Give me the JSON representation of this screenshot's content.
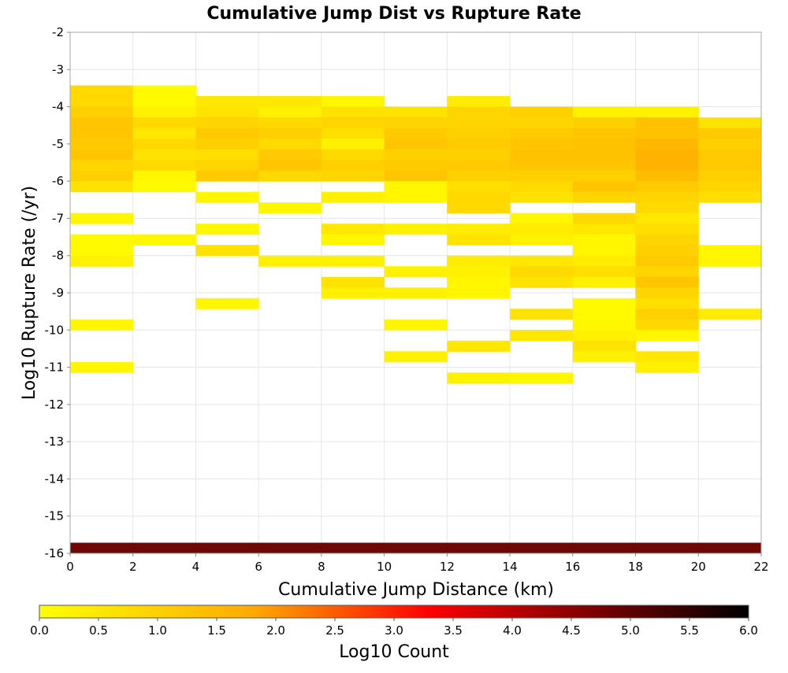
{
  "chart_data": {
    "type": "heatmap",
    "title": "Cumulative Jump Dist vs Rupture Rate",
    "xlabel": "Cumulative Jump Distance (km)",
    "ylabel": "Log10 Rupture Rate (/yr)",
    "xlim": [
      0,
      22
    ],
    "ylim": [
      -16,
      -2
    ],
    "x_ticks": [
      "0",
      "2",
      "4",
      "6",
      "8",
      "10",
      "12",
      "14",
      "16",
      "18",
      "20",
      "22"
    ],
    "y_ticks": [
      "-2",
      "-3",
      "-4",
      "-5",
      "-6",
      "-7",
      "-8",
      "-9",
      "-10",
      "-11",
      "-12",
      "-13",
      "-14",
      "-15",
      "-16"
    ],
    "x_bin_width": 2,
    "y_bin_height": 0.2857,
    "grid": true,
    "colorbar": {
      "label": "Log10 Count",
      "range": [
        0,
        6
      ],
      "ticks": [
        "0.0",
        "0.5",
        "1.0",
        "1.5",
        "2.0",
        "2.5",
        "3.0",
        "3.5",
        "4.0",
        "4.5",
        "5.0",
        "5.5",
        "6.0"
      ],
      "colors": [
        "#ffff00",
        "#ffaa00",
        "#ff0000",
        "#000000"
      ]
    },
    "cells": [
      {
        "x": 0,
        "rows": [
          [
            -3.571,
            0.8
          ],
          [
            -3.857,
            0.8
          ],
          [
            -4.143,
            1.0
          ],
          [
            -4.429,
            1.2
          ],
          [
            -4.714,
            1.2
          ],
          [
            -5.0,
            1.1
          ],
          [
            -5.286,
            1.2
          ],
          [
            -5.571,
            0.9
          ],
          [
            -5.857,
            1.0
          ],
          [
            -6.143,
            0.6
          ],
          [
            -7.0,
            0.2
          ],
          [
            -7.571,
            0.1
          ],
          [
            -7.857,
            0.1
          ],
          [
            -8.143,
            0.3
          ],
          [
            -9.857,
            0.2
          ],
          [
            -11.0,
            0.2
          ]
        ]
      },
      {
        "x": 2,
        "rows": [
          [
            -3.571,
            0.1
          ],
          [
            -3.857,
            0.1
          ],
          [
            -4.143,
            0.3
          ],
          [
            -4.429,
            0.8
          ],
          [
            -4.714,
            0.5
          ],
          [
            -5.0,
            0.8
          ],
          [
            -5.286,
            0.6
          ],
          [
            -5.571,
            0.8
          ],
          [
            -5.857,
            0.2
          ],
          [
            -6.143,
            0.1
          ],
          [
            -7.571,
            0.2
          ]
        ]
      },
      {
        "x": 4,
        "rows": [
          [
            -3.857,
            0.5
          ],
          [
            -4.143,
            0.6
          ],
          [
            -4.429,
            0.9
          ],
          [
            -4.714,
            1.1
          ],
          [
            -5.0,
            1.0
          ],
          [
            -5.286,
            0.7
          ],
          [
            -5.571,
            0.9
          ],
          [
            -5.857,
            1.1
          ],
          [
            -6.429,
            0.2
          ],
          [
            -7.286,
            0.2
          ],
          [
            -7.857,
            0.6
          ],
          [
            -9.286,
            0.2
          ]
        ]
      },
      {
        "x": 6,
        "rows": [
          [
            -3.857,
            0.5
          ],
          [
            -4.143,
            0.3
          ],
          [
            -4.429,
            0.8
          ],
          [
            -4.714,
            1.0
          ],
          [
            -5.0,
            0.8
          ],
          [
            -5.286,
            1.1
          ],
          [
            -5.571,
            1.2
          ],
          [
            -5.857,
            0.8
          ],
          [
            -6.714,
            0.2
          ],
          [
            -8.143,
            0.3
          ]
        ]
      },
      {
        "x": 8,
        "rows": [
          [
            -3.857,
            0.2
          ],
          [
            -4.143,
            0.6
          ],
          [
            -4.429,
            0.9
          ],
          [
            -4.714,
            0.7
          ],
          [
            -5.0,
            0.3
          ],
          [
            -5.286,
            0.8
          ],
          [
            -5.571,
            1.0
          ],
          [
            -5.857,
            0.9
          ],
          [
            -6.429,
            0.3
          ],
          [
            -7.286,
            0.5
          ],
          [
            -7.571,
            0.2
          ],
          [
            -8.143,
            0.3
          ],
          [
            -8.714,
            0.6
          ],
          [
            -9.0,
            0.3
          ]
        ]
      },
      {
        "x": 10,
        "rows": [
          [
            -4.143,
            0.6
          ],
          [
            -4.429,
            0.9
          ],
          [
            -4.714,
            1.1
          ],
          [
            -5.0,
            1.2
          ],
          [
            -5.286,
            1.0
          ],
          [
            -5.571,
            1.1
          ],
          [
            -5.857,
            1.2
          ],
          [
            -6.143,
            0.2
          ],
          [
            -6.429,
            0.2
          ],
          [
            -7.286,
            0.3
          ],
          [
            -8.429,
            0.3
          ],
          [
            -9.0,
            0.3
          ],
          [
            -9.857,
            0.2
          ],
          [
            -10.714,
            0.3
          ]
        ]
      },
      {
        "x": 12,
        "rows": [
          [
            -3.857,
            0.4
          ],
          [
            -4.143,
            0.9
          ],
          [
            -4.429,
            0.9
          ],
          [
            -4.714,
            1.0
          ],
          [
            -5.0,
            1.1
          ],
          [
            -5.286,
            1.0
          ],
          [
            -5.571,
            1.1
          ],
          [
            -5.857,
            1.0
          ],
          [
            -6.143,
            0.7
          ],
          [
            -6.429,
            0.8
          ],
          [
            -6.714,
            0.8
          ],
          [
            -7.286,
            0.4
          ],
          [
            -7.571,
            0.6
          ],
          [
            -8.143,
            0.4
          ],
          [
            -8.429,
            0.3
          ],
          [
            -8.714,
            0.2
          ],
          [
            -9.0,
            0.2
          ],
          [
            -10.429,
            0.5
          ],
          [
            -11.286,
            0.3
          ]
        ]
      },
      {
        "x": 14,
        "rows": [
          [
            -4.143,
            1.0
          ],
          [
            -4.429,
            0.9
          ],
          [
            -4.714,
            1.1
          ],
          [
            -5.0,
            1.2
          ],
          [
            -5.286,
            1.3
          ],
          [
            -5.571,
            1.2
          ],
          [
            -5.857,
            1.0
          ],
          [
            -6.143,
            0.8
          ],
          [
            -6.429,
            0.6
          ],
          [
            -7.0,
            0.2
          ],
          [
            -7.286,
            0.4
          ],
          [
            -7.571,
            0.3
          ],
          [
            -8.143,
            0.5
          ],
          [
            -8.429,
            0.8
          ],
          [
            -8.714,
            0.6
          ],
          [
            -9.571,
            0.6
          ],
          [
            -10.143,
            0.5
          ],
          [
            -11.286,
            0.2
          ]
        ]
      },
      {
        "x": 16,
        "rows": [
          [
            -4.143,
            0.3
          ],
          [
            -4.429,
            1.0
          ],
          [
            -4.714,
            1.2
          ],
          [
            -5.0,
            1.3
          ],
          [
            -5.286,
            1.3
          ],
          [
            -5.571,
            1.2
          ],
          [
            -5.857,
            1.0
          ],
          [
            -6.143,
            1.2
          ],
          [
            -6.429,
            0.9
          ],
          [
            -7.0,
            0.8
          ],
          [
            -7.286,
            0.5
          ],
          [
            -7.571,
            0.2
          ],
          [
            -7.857,
            0.2
          ],
          [
            -8.143,
            0.4
          ],
          [
            -8.429,
            0.7
          ],
          [
            -8.714,
            0.3
          ],
          [
            -9.286,
            0.1
          ],
          [
            -9.571,
            0.1
          ],
          [
            -9.857,
            0.2
          ],
          [
            -10.143,
            0.3
          ],
          [
            -10.429,
            0.6
          ],
          [
            -10.714,
            0.3
          ]
        ]
      },
      {
        "x": 18,
        "rows": [
          [
            -4.143,
            0.3
          ],
          [
            -4.429,
            1.3
          ],
          [
            -4.714,
            1.3
          ],
          [
            -5.0,
            1.5
          ],
          [
            -5.286,
            1.6
          ],
          [
            -5.571,
            1.6
          ],
          [
            -5.857,
            1.4
          ],
          [
            -6.143,
            1.1
          ],
          [
            -6.429,
            0.9
          ],
          [
            -6.714,
            0.8
          ],
          [
            -7.0,
            0.5
          ],
          [
            -7.286,
            0.7
          ],
          [
            -7.571,
            0.9
          ],
          [
            -7.857,
            1.0
          ],
          [
            -8.143,
            1.1
          ],
          [
            -8.429,
            0.9
          ],
          [
            -8.714,
            1.2
          ],
          [
            -9.0,
            0.9
          ],
          [
            -9.286,
            0.7
          ],
          [
            -9.571,
            1.0
          ],
          [
            -9.857,
            0.8
          ],
          [
            -10.143,
            0.2
          ],
          [
            -10.714,
            0.5
          ],
          [
            -11.0,
            0.3
          ]
        ]
      },
      {
        "x": 20,
        "rows": [
          [
            -4.429,
            0.6
          ],
          [
            -4.714,
            1.1
          ],
          [
            -5.0,
            1.0
          ],
          [
            -5.286,
            1.1
          ],
          [
            -5.571,
            1.1
          ],
          [
            -5.857,
            1.0
          ],
          [
            -6.143,
            0.9
          ],
          [
            -6.429,
            0.7
          ],
          [
            -7.857,
            0.2
          ],
          [
            -8.143,
            0.2
          ],
          [
            -9.571,
            0.4
          ]
        ]
      }
    ],
    "full_rows": [
      [
        -15.857,
        5.2
      ]
    ]
  }
}
